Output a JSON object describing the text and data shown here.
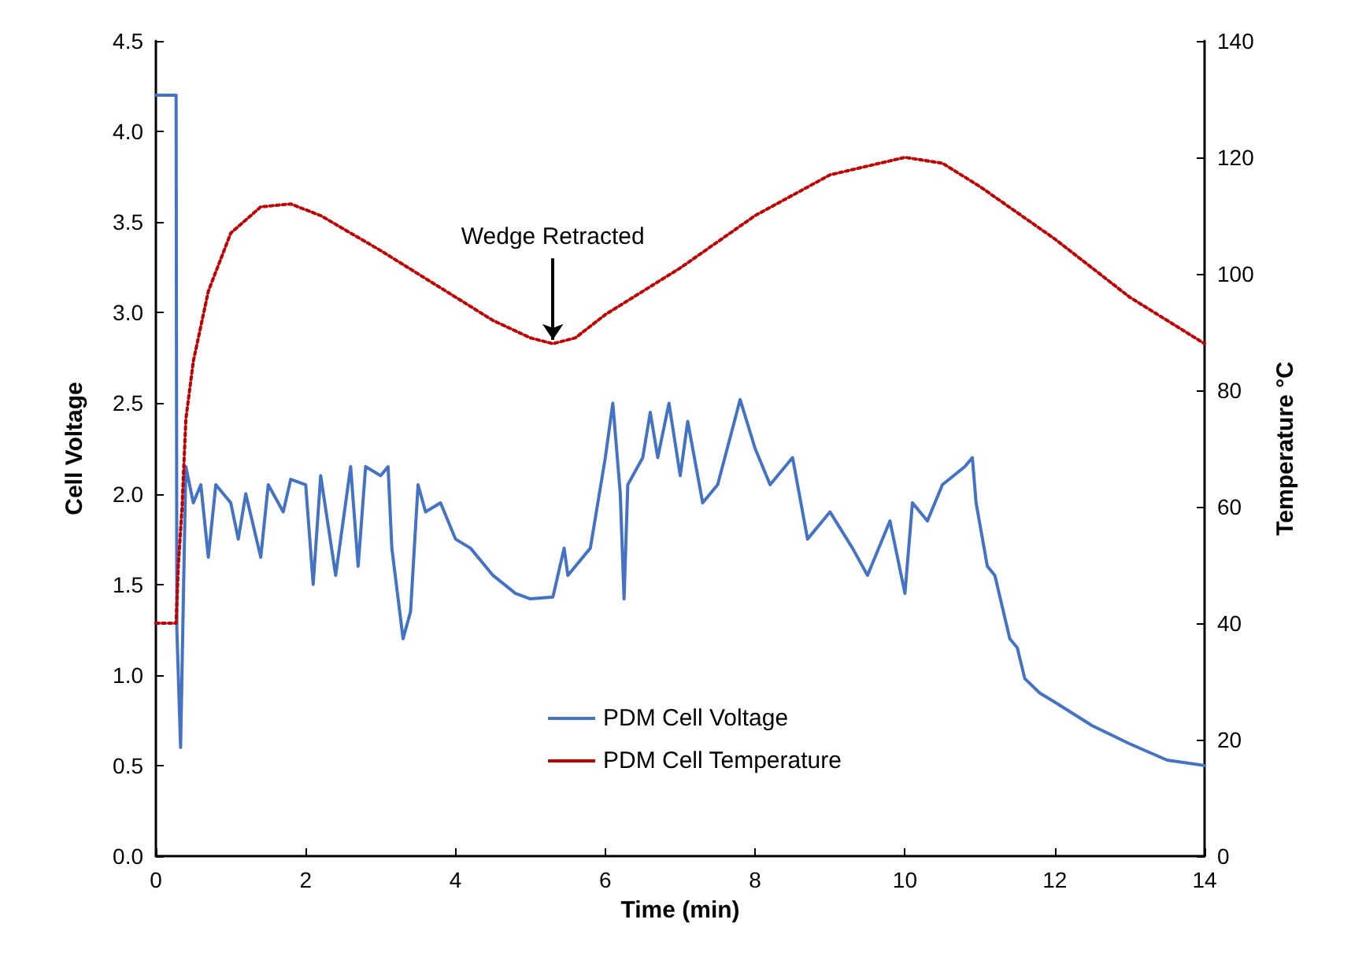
{
  "chart_data": {
    "type": "line",
    "xlabel": "Time (min)",
    "ylabel": "Cell Voltage",
    "y2label": "Temperature °C",
    "xlim": [
      0,
      14
    ],
    "xticks": [
      0,
      2,
      4,
      6,
      8,
      10,
      12,
      14
    ],
    "ylim": [
      0,
      4.5
    ],
    "yticks": [
      {
        "value": 0,
        "label": "0.0"
      },
      {
        "value": 0.5,
        "label": "0.5"
      },
      {
        "value": 1,
        "label": "1.0"
      },
      {
        "value": 1.5,
        "label": "1.5"
      },
      {
        "value": 2,
        "label": "2.0"
      },
      {
        "value": 2.5,
        "label": "2.5"
      },
      {
        "value": 3,
        "label": "3.0"
      },
      {
        "value": 3.5,
        "label": "3.5"
      },
      {
        "value": 4,
        "label": "4.0"
      },
      {
        "value": 4.5,
        "label": "4.5"
      }
    ],
    "y2lim": [
      0,
      140
    ],
    "y2ticks": [
      0,
      20,
      40,
      60,
      80,
      100,
      120,
      140
    ],
    "grid": false,
    "legend": "bottom",
    "marker": "none",
    "annotations": [
      {
        "text": "Wedge Retracted",
        "x": 5.3,
        "y": 2.85
      }
    ],
    "series": [
      {
        "name": "PDM Cell Voltage",
        "color": "#4472c4",
        "line_style": "solid",
        "x": [
          0,
          0.27,
          0.28,
          0.33,
          0.4,
          0.5,
          0.6,
          0.7,
          0.8,
          1.0,
          1.1,
          1.2,
          1.4,
          1.5,
          1.7,
          1.8,
          2.0,
          2.1,
          2.2,
          2.4,
          2.6,
          2.7,
          2.8,
          3.0,
          3.1,
          3.15,
          3.3,
          3.4,
          3.5,
          3.6,
          3.8,
          4.0,
          4.2,
          4.5,
          4.8,
          5.0,
          5.3,
          5.45,
          5.5,
          5.8,
          6.0,
          6.1,
          6.2,
          6.25,
          6.3,
          6.5,
          6.6,
          6.7,
          6.85,
          7.0,
          7.1,
          7.3,
          7.5,
          7.8,
          8.0,
          8.2,
          8.5,
          8.7,
          9.0,
          9.3,
          9.5,
          9.8,
          10.0,
          10.1,
          10.3,
          10.5,
          10.8,
          10.9,
          10.95,
          11.1,
          11.2,
          11.4,
          11.5,
          11.6,
          11.8,
          12.0,
          12.5,
          13.0,
          13.5,
          14.0
        ],
        "values": [
          4.2,
          4.2,
          1.25,
          0.6,
          2.15,
          1.95,
          2.05,
          1.65,
          2.05,
          1.95,
          1.75,
          2.0,
          1.65,
          2.05,
          1.9,
          2.08,
          2.05,
          1.5,
          2.1,
          1.55,
          2.15,
          1.6,
          2.15,
          2.1,
          2.15,
          1.7,
          1.2,
          1.35,
          2.05,
          1.9,
          1.95,
          1.75,
          1.7,
          1.55,
          1.45,
          1.42,
          1.43,
          1.7,
          1.55,
          1.7,
          2.2,
          2.5,
          2.0,
          1.42,
          2.05,
          2.2,
          2.45,
          2.2,
          2.5,
          2.1,
          2.4,
          1.95,
          2.05,
          2.52,
          2.25,
          2.05,
          2.2,
          1.75,
          1.9,
          1.7,
          1.55,
          1.85,
          1.45,
          1.95,
          1.85,
          2.05,
          2.15,
          2.2,
          1.95,
          1.6,
          1.55,
          1.2,
          1.15,
          0.98,
          0.9,
          0.85,
          0.72,
          0.62,
          0.53,
          0.5
        ]
      },
      {
        "name": "PDM Cell Temperature",
        "color": "#c00000",
        "line_style": "dotted",
        "axis": "y2",
        "x": [
          0,
          0.27,
          0.3,
          0.35,
          0.4,
          0.5,
          0.7,
          1.0,
          1.4,
          1.8,
          2.2,
          3.0,
          4.0,
          4.5,
          5.0,
          5.3,
          5.6,
          6.0,
          7.0,
          8.0,
          9.0,
          10.0,
          10.5,
          11.0,
          12.0,
          13.0,
          14.0
        ],
        "values": [
          40,
          40,
          50,
          60,
          75,
          85,
          97,
          107,
          111.5,
          112,
          110,
          104,
          96,
          92,
          89,
          88,
          89,
          93,
          101,
          110,
          117,
          120,
          119,
          115,
          106,
          96,
          88
        ]
      }
    ]
  }
}
